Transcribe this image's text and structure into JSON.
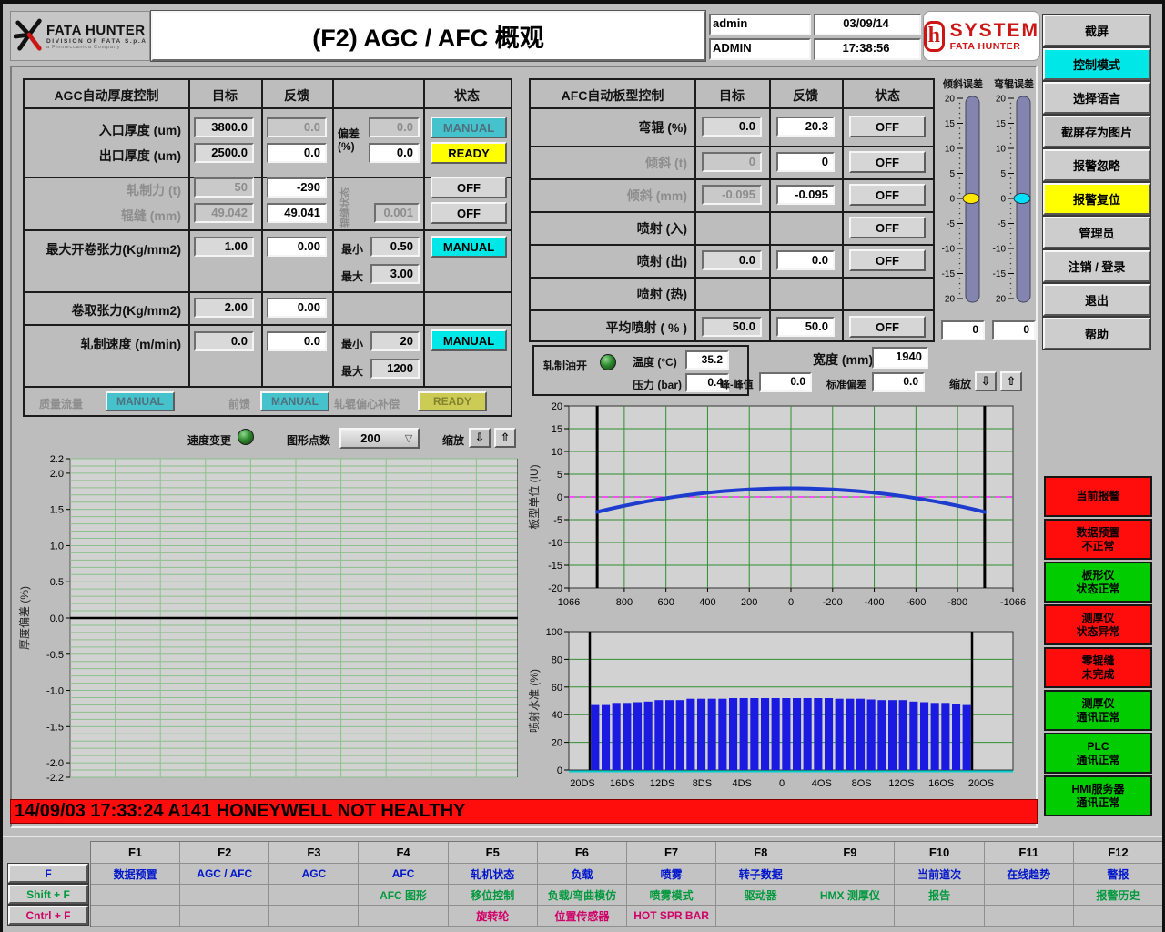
{
  "header": {
    "logo_title": "FATA HUNTER",
    "logo_sub": "DIVISION OF FATA S.p.A",
    "logo_sub2": "a Finmeccanica Company",
    "title": "(F2) AGC / AFC 概观",
    "user": "admin",
    "role": "ADMIN",
    "date": "03/09/14",
    "time": "17:38:56",
    "brand": "SYSTEM",
    "brand_sub": "FATA HUNTER"
  },
  "sidebar": {
    "buttons": [
      {
        "label": "截屏",
        "color": "gray"
      },
      {
        "label": "控制模式",
        "color": "cyan"
      },
      {
        "label": "选择语言",
        "color": "gray"
      },
      {
        "label": "截屏存为图片",
        "color": "graydark"
      },
      {
        "label": "报警忽略",
        "color": "gray"
      },
      {
        "label": "报警复位",
        "color": "yellow"
      },
      {
        "label": "管理员",
        "color": "gray"
      },
      {
        "label": "注销 / 登录",
        "color": "gray"
      },
      {
        "label": "退出",
        "color": "gray"
      },
      {
        "label": "帮助",
        "color": "gray"
      }
    ]
  },
  "agc": {
    "title": "AGC自动厚度控制",
    "col_target": "目标",
    "col_feedback": "反馈",
    "col_status": "状态",
    "dev_label_1": "偏差",
    "dev_label_2": "(%)",
    "gap_state_label": "辊缝状态",
    "min_label": "最小",
    "max_label": "最大",
    "entry": {
      "label": "入口厚度 (um)",
      "target": "3800.0",
      "feedback": "0.0",
      "dev": "0.0",
      "status": "MANUAL"
    },
    "exit": {
      "label": "出口厚度 (um)",
      "target": "2500.0",
      "feedback": "0.0",
      "dev": "0.0",
      "status": "READY"
    },
    "force": {
      "label": "轧制力 (t)",
      "target": "50",
      "feedback": "-290",
      "status": "OFF"
    },
    "gap": {
      "label": "辊缝 (mm)",
      "target": "49.042",
      "feedback": "49.041",
      "dev": "0.001",
      "status": "OFF"
    },
    "uncoil": {
      "label": "最大开卷张力(Kg/mm2)",
      "target": "1.00",
      "feedback": "0.00",
      "min": "0.50",
      "max": "3.00",
      "status": "MANUAL"
    },
    "coil": {
      "label": "卷取张力(Kg/mm2)",
      "target": "2.00",
      "feedback": "0.00"
    },
    "speed": {
      "label": "轧制速度 (m/min)",
      "target": "0.0",
      "feedback": "0.0",
      "min": "20",
      "max": "1200",
      "status": "MANUAL"
    },
    "massflow_label": "质量流量",
    "massflow_status": "MANUAL",
    "feedforward_label": "前馈",
    "feedforward_status": "MANUAL",
    "eccentric_label": "轧辊偏心补偿",
    "eccentric_status": "READY"
  },
  "afc": {
    "title": "AFC自动板型控制",
    "col_target": "目标",
    "col_feedback": "反馈",
    "col_status": "状态",
    "rows": [
      {
        "label": "弯辊 (%)",
        "target": "0.0",
        "feedback": "20.3",
        "status": "OFF",
        "dim": false
      },
      {
        "label": "倾斜 (t)",
        "target": "0",
        "feedback": "0",
        "status": "OFF",
        "dim": true
      },
      {
        "label": "倾斜 (mm)",
        "target": "-0.095",
        "feedback": "-0.095",
        "status": "OFF",
        "dim": true
      },
      {
        "label": "喷射 (入)",
        "target": null,
        "feedback": null,
        "status": "OFF",
        "dim": false
      },
      {
        "label": "喷射 (出)",
        "target": "0.0",
        "feedback": "0.0",
        "status": "OFF",
        "dim": false
      },
      {
        "label": "喷射 (热)",
        "target": null,
        "feedback": null,
        "status": null,
        "dim": false
      },
      {
        "label": "平均喷射 ( % )",
        "target": "50.0",
        "feedback": "50.0",
        "status": "OFF",
        "dim": false
      }
    ]
  },
  "sliders": [
    {
      "label": "倾斜误差",
      "ticks": [
        20,
        15,
        10,
        5,
        0,
        -5,
        -10,
        -15,
        -20
      ],
      "value": "0",
      "value_num": 0,
      "thumb": "#ffe600"
    },
    {
      "label": "弯辊误差",
      "ticks": [
        20,
        15,
        10,
        5,
        0,
        -5,
        -10,
        -15,
        -20
      ],
      "value": "0",
      "value_num": 0,
      "thumb": "#00dfff"
    }
  ],
  "oil_box": {
    "label": "轧制油开",
    "temp_label": "温度 (°C)",
    "temp": "35.2",
    "press_label": "压力 (bar)",
    "press": "0.4"
  },
  "width_box": {
    "label": "宽度 (mm)",
    "value": "1940"
  },
  "stats": {
    "p2p_label": "峰-峰值",
    "p2p": "0.0",
    "std_label": "标准偏差",
    "std": "0.0",
    "zoom_label": "缩放",
    "zoom_down": "⇩",
    "zoom_up": "⇧"
  },
  "trend_controls": {
    "speed_label": "速度变更",
    "points_label": "图形点数",
    "points_value": "200",
    "zoom_label": "缩放",
    "zoom_down": "⇩",
    "zoom_up": "⇧"
  },
  "alarm_bar": {
    "text": "14/09/03 17:33:24 A141 HONEYWELL NOT HEALTHY"
  },
  "status_stack": [
    {
      "lines": [
        "当前报警"
      ],
      "color": "red"
    },
    {
      "lines": [
        "数据预置",
        "不正常"
      ],
      "color": "red"
    },
    {
      "lines": [
        "板形仪",
        "状态正常"
      ],
      "color": "green"
    },
    {
      "lines": [
        "测厚仪",
        "状态异常"
      ],
      "color": "red"
    },
    {
      "lines": [
        "零辊缝",
        "未完成"
      ],
      "color": "red"
    },
    {
      "lines": [
        "测厚仪",
        "通讯正常"
      ],
      "color": "green"
    },
    {
      "lines": [
        "PLC",
        "通讯正常"
      ],
      "color": "green"
    },
    {
      "lines": [
        "HMI服务器",
        "通讯正常"
      ],
      "color": "green"
    }
  ],
  "fkeys": {
    "row_labels": [
      {
        "label": "F",
        "color": "#0016cc"
      },
      {
        "label": "Shift + F",
        "color": "#009a3e"
      },
      {
        "label": "Cntrl + F",
        "color": "#d10068"
      }
    ],
    "columns": [
      {
        "key": "F1",
        "f": "数据预置",
        "shift": "",
        "ctrl": ""
      },
      {
        "key": "F2",
        "f": "AGC / AFC",
        "shift": "",
        "ctrl": ""
      },
      {
        "key": "F3",
        "f": "AGC",
        "shift": "",
        "ctrl": ""
      },
      {
        "key": "F4",
        "f": "AFC",
        "shift": "AFC 图形",
        "ctrl": ""
      },
      {
        "key": "F5",
        "f": "轧机状态",
        "shift": "移位控制",
        "ctrl": "旋转轮"
      },
      {
        "key": "F6",
        "f": "负载",
        "shift": "负载/弯曲模仿",
        "ctrl": "位置传感器"
      },
      {
        "key": "F7",
        "f": "喷雾",
        "shift": "喷雾模式",
        "ctrl": "HOT SPR BAR"
      },
      {
        "key": "F8",
        "f": "转子数据",
        "shift": "驱动器",
        "ctrl": ""
      },
      {
        "key": "F9",
        "f": "",
        "shift": "HMX 测厚仪",
        "ctrl": ""
      },
      {
        "key": "F10",
        "f": "当前道次",
        "shift": "报告",
        "ctrl": ""
      },
      {
        "key": "F11",
        "f": "在线趋势",
        "shift": "",
        "ctrl": ""
      },
      {
        "key": "F12",
        "f": "警报",
        "shift": "报警历史",
        "ctrl": ""
      }
    ]
  },
  "chart_data": [
    {
      "id": "thickness_trend",
      "type": "line",
      "ylabel": "厚度偏差 (%)",
      "ytick_vals": [
        2.2,
        2.0,
        1.5,
        1.0,
        0.5,
        0.0,
        -0.5,
        -1.0,
        -1.5,
        -2.0,
        -2.2
      ],
      "ytick_labels": [
        "2.2",
        "2.0",
        "1.5",
        "1.0",
        "0.5",
        "0.0",
        "-0.5",
        "-1.0",
        "-1.5",
        "-2.0",
        "-2.2"
      ],
      "ylim": [
        -2.2,
        2.2
      ],
      "grid": true,
      "zero_line": 0.0,
      "x": [],
      "series": []
    },
    {
      "id": "flatness_profile",
      "type": "line",
      "ylabel": "板型单位 (IU)",
      "yticks": [
        20,
        15,
        10,
        5,
        0,
        -5,
        -10,
        -15,
        -20
      ],
      "ylim": [
        -20,
        20
      ],
      "xticks": [
        1066,
        800,
        600,
        400,
        200,
        0,
        -200,
        -400,
        -600,
        -800,
        -1066
      ],
      "xlim": [
        1066,
        -1066
      ],
      "grid": true,
      "target_line": 0,
      "edge_lines": [
        930,
        -930
      ],
      "line_color": "#1e3cce",
      "x": [
        930,
        870,
        810,
        750,
        690,
        630,
        570,
        510,
        450,
        390,
        330,
        270,
        210,
        150,
        90,
        30,
        -30,
        -90,
        -150,
        -210,
        -270,
        -330,
        -390,
        -450,
        -510,
        -570,
        -630,
        -690,
        -750,
        -810,
        -870,
        -930
      ],
      "values": [
        -3.3,
        -2.65,
        -2.04,
        -1.48,
        -0.96,
        -0.49,
        -0.05,
        0.34,
        0.68,
        0.99,
        1.25,
        1.46,
        1.63,
        1.76,
        1.85,
        1.89,
        1.89,
        1.85,
        1.76,
        1.63,
        1.46,
        1.25,
        0.99,
        0.68,
        0.34,
        -0.05,
        -0.49,
        -0.96,
        -1.48,
        -2.04,
        -2.65,
        -3.3
      ]
    },
    {
      "id": "spray_valve_bars",
      "type": "bar",
      "ylabel": "喷射水准 (%)",
      "yticks": [
        100,
        80,
        60,
        40,
        20,
        0
      ],
      "ylim": [
        0,
        100
      ],
      "xticks": [
        "20DS",
        "16DS",
        "12DS",
        "8DS",
        "4DS",
        "0",
        "4OS",
        "8OS",
        "12OS",
        "16OS",
        "20OS"
      ],
      "bar_color": "#1a1ae0",
      "grid": true,
      "values": [
        47,
        47,
        48.5,
        48.5,
        49,
        49.5,
        50.5,
        50.5,
        50.5,
        51.5,
        51.5,
        51.5,
        51.5,
        52,
        52,
        52,
        52,
        52,
        52,
        52,
        52,
        52,
        52,
        51.5,
        51.5,
        51.5,
        51,
        50.5,
        50.5,
        50.5,
        49.5,
        49,
        48.5,
        48.5,
        47.5,
        47
      ]
    }
  ]
}
